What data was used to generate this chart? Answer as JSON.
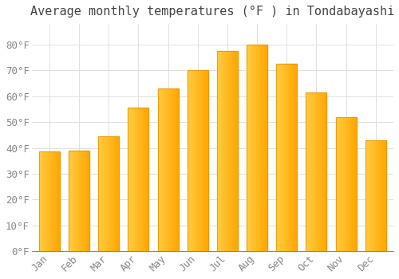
{
  "title": "Average monthly temperatures (°F ) in Tondabayashi",
  "months": [
    "Jan",
    "Feb",
    "Mar",
    "Apr",
    "May",
    "Jun",
    "Jul",
    "Aug",
    "Sep",
    "Oct",
    "Nov",
    "Dec"
  ],
  "values": [
    38.5,
    39.0,
    44.5,
    55.5,
    63.0,
    70.0,
    77.5,
    80.0,
    72.5,
    61.5,
    52.0,
    43.0
  ],
  "bar_color_left": "#FFD84D",
  "bar_color_right": "#FFA500",
  "background_color": "#FFFFFF",
  "grid_color": "#E0E0E0",
  "text_color": "#888888",
  "ylim": [
    0,
    88
  ],
  "yticks": [
    0,
    10,
    20,
    30,
    40,
    50,
    60,
    70,
    80
  ],
  "title_fontsize": 11,
  "tick_fontsize": 9
}
